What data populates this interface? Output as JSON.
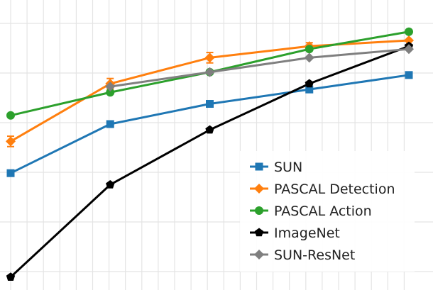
{
  "chart_data": {
    "type": "line",
    "title": "",
    "xlabel": "",
    "ylabel": "",
    "x": [
      1,
      2,
      3,
      4,
      5
    ],
    "xlim": [
      1,
      5
    ],
    "ylim": [
      0,
      1
    ],
    "grid": true,
    "legend_position": "bottom-right",
    "series": [
      {
        "name": "SUN",
        "color": "#1f77b4",
        "marker": "square",
        "values": [
          0.4,
          0.57,
          0.64,
          0.69,
          0.74
        ],
        "errors": [
          0,
          0,
          0,
          0,
          0
        ]
      },
      {
        "name": "PASCAL Detection",
        "color": "#ff7f0e",
        "marker": "diamond",
        "values": [
          0.51,
          0.71,
          0.8,
          0.84,
          0.86
        ],
        "errors": [
          0.018,
          0.018,
          0.018,
          0.012,
          0
        ]
      },
      {
        "name": "PASCAL Action",
        "color": "#2ca02c",
        "marker": "circle",
        "values": [
          0.6,
          0.68,
          0.75,
          0.83,
          0.89
        ],
        "errors": [
          0,
          0,
          0,
          0,
          0
        ]
      },
      {
        "name": "ImageNet",
        "color": "#000000",
        "marker": "pentagon",
        "values": [
          0.04,
          0.36,
          0.55,
          0.71,
          0.84
        ],
        "errors": [
          0,
          0,
          0,
          0,
          0
        ]
      },
      {
        "name": "SUN-ResNet",
        "color": "#7f7f7f",
        "marker": "diamond",
        "values": [
          null,
          0.7,
          0.75,
          0.8,
          0.83
        ],
        "errors": [
          0,
          0,
          0,
          0,
          0
        ]
      }
    ]
  }
}
